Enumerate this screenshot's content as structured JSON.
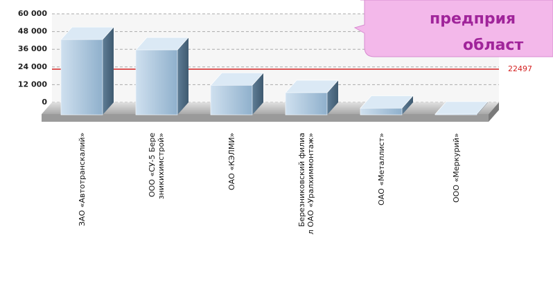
{
  "chart_data": {
    "type": "bar3d",
    "categories": [
      "ЗАО «Автотранскалий»",
      "ООО «СУ-5 Бере\nзникихимстрой»",
      "ОАО «КЭЛМИ»",
      "Березниковский филиа\nл ОАО «Уралхиммонтаж»",
      "ОАО «Металлист»",
      "ООО «Меркурий»"
    ],
    "values": [
      51000,
      44000,
      20000,
      15000,
      4500,
      500
    ],
    "color": "#a9c6e0",
    "ylim": [
      0,
      60000
    ],
    "yticks": [
      0,
      {
        "value": 12000,
        "label": "12 000"
      },
      {
        "value": 24000,
        "label": "24 000"
      },
      {
        "value": 36000,
        "label": "36 000"
      },
      {
        "value": 48000,
        "label": "48 000"
      },
      {
        "value": 60000,
        "label": "60 000"
      }
    ],
    "grid": true,
    "reference_line": {
      "value": 22497,
      "color": "#d42020"
    },
    "annotation": [
      "предприя",
      "област"
    ]
  }
}
